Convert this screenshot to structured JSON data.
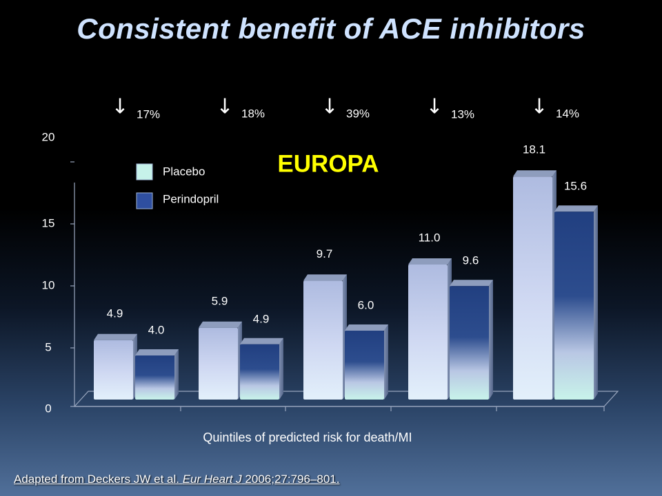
{
  "title": "Consistent benefit of ACE inhibitors",
  "chart_data": {
    "type": "bar",
    "annotation": "EUROPA",
    "xlabel": "Quintiles of predicted risk for death/MI",
    "ylabel": "",
    "ylim": [
      0,
      20
    ],
    "yticks": [
      "0",
      "5",
      "10",
      "15",
      "20"
    ],
    "categories": [
      "",
      "",
      "",
      "",
      ""
    ],
    "series": [
      {
        "name": "Placebo",
        "values": [
          4.9,
          5.9,
          9.7,
          11.0,
          18.1
        ],
        "labels": [
          "4.9",
          "5.9",
          "9.7",
          "11.0",
          "18.1"
        ],
        "color": "#c9d8f2"
      },
      {
        "name": "Perindopril",
        "values": [
          4.0,
          4.9,
          6.0,
          9.6,
          15.6
        ],
        "labels": [
          "4.0",
          "4.9",
          "6.0",
          "9.6",
          "15.6"
        ],
        "color": "#2a4a8c"
      }
    ],
    "reductions": [
      "17%",
      "18%",
      "39%",
      "13%",
      "14%"
    ],
    "reduction_arrow": "↓",
    "legend_position": "top-left"
  },
  "footer": {
    "prefix": "Adapted from Deckers JW et al. ",
    "journal": "Eur Heart J",
    "suffix": " 2006;27:796–801."
  }
}
